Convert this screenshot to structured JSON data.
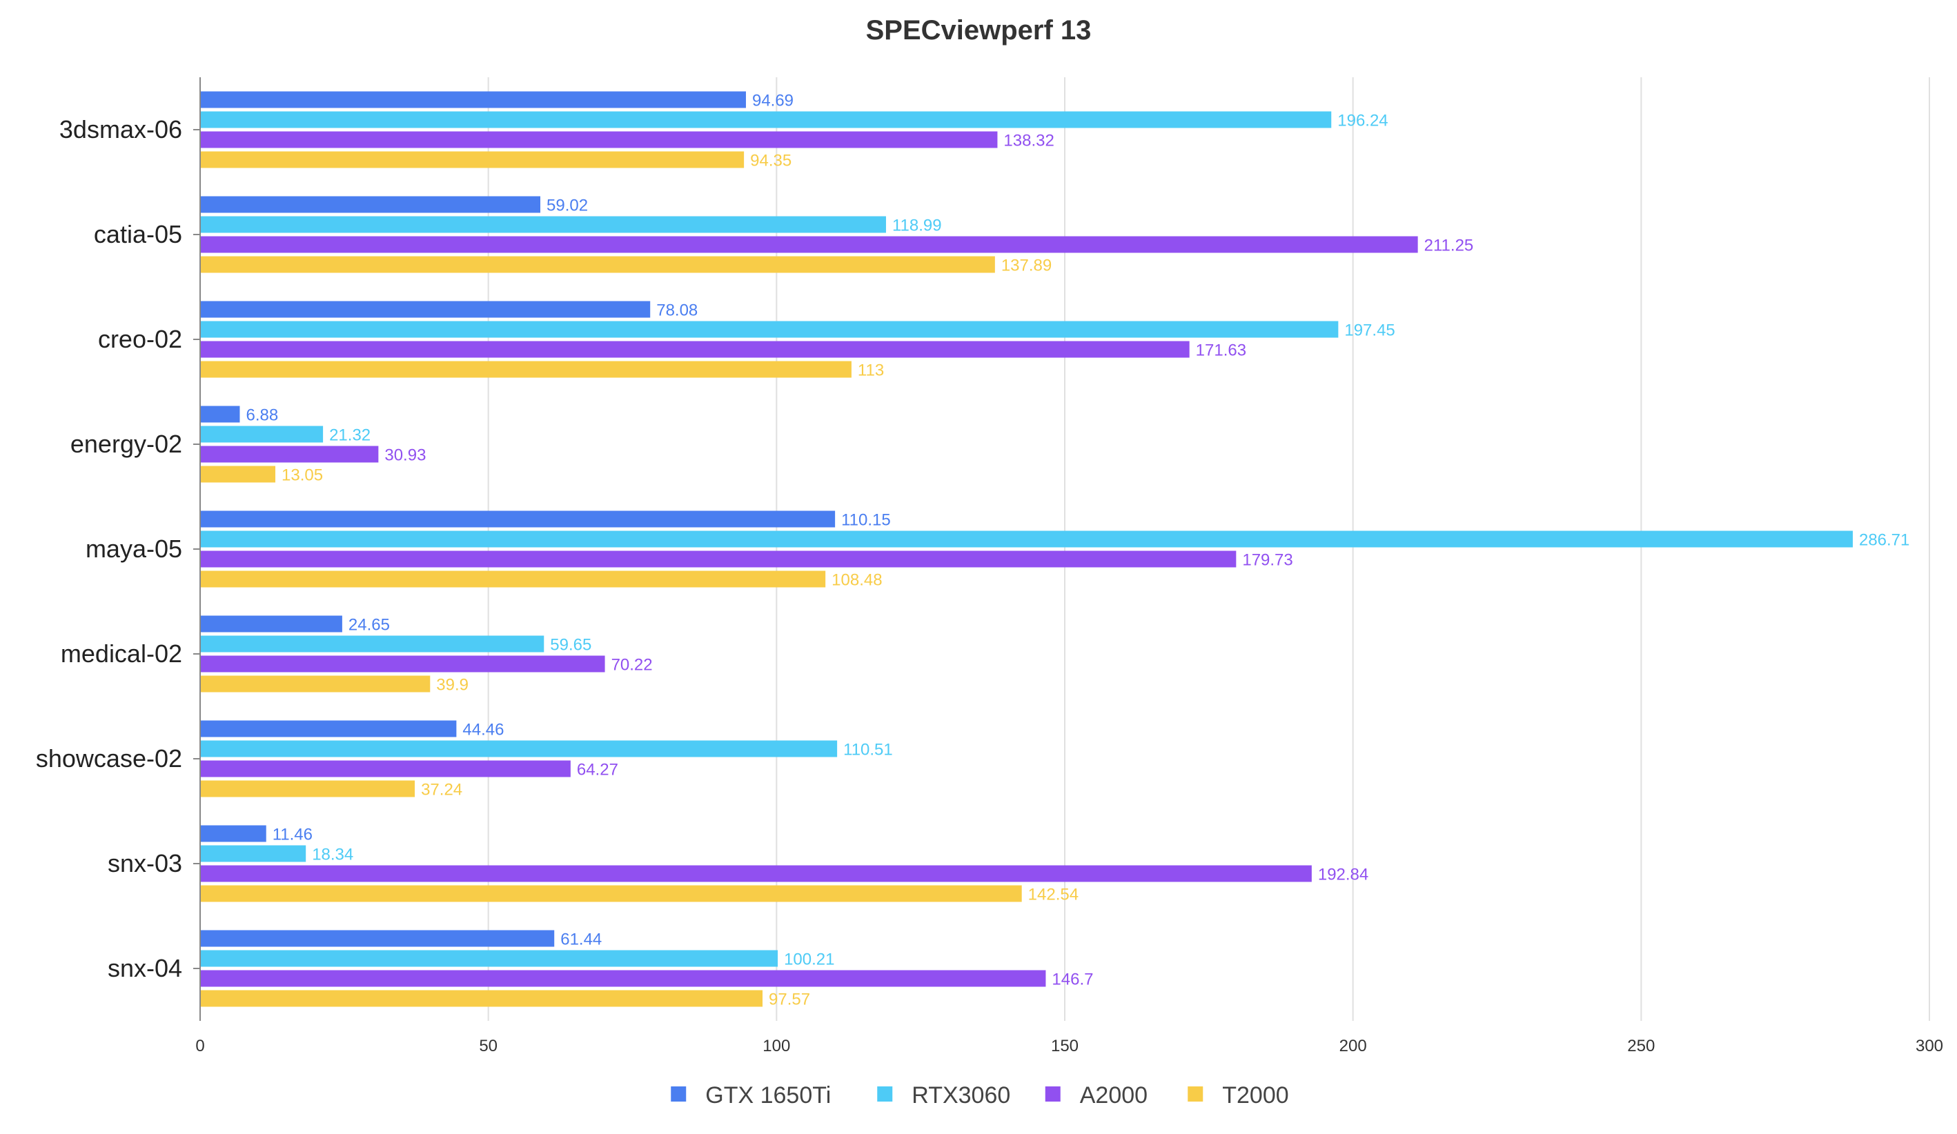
{
  "chart_data": {
    "type": "bar",
    "orientation": "horizontal",
    "title": "SPECviewperf 13",
    "xlabel": "",
    "ylabel": "",
    "xlim": [
      0,
      300
    ],
    "x_ticks": [
      0,
      50,
      100,
      150,
      200,
      250,
      300
    ],
    "grid": true,
    "legend_position": "bottom-center",
    "categories": [
      "3dsmax-06",
      "catia-05",
      "creo-02",
      "energy-02",
      "maya-05",
      "medical-02",
      "showcase-02",
      "snx-03",
      "snx-04"
    ],
    "series": [
      {
        "name": "GTX 1650Ti",
        "color": "#4a7ef0",
        "values": [
          94.69,
          59.02,
          78.08,
          6.88,
          110.15,
          24.65,
          44.46,
          11.46,
          61.44
        ],
        "labels": [
          "94.69",
          "59.02",
          "78.08",
          "6.88",
          "110.15",
          "24.65",
          "44.46",
          "11.46",
          "61.44"
        ]
      },
      {
        "name": "RTX3060",
        "color": "#4ecbf6",
        "values": [
          196.24,
          118.99,
          197.45,
          21.32,
          286.71,
          59.65,
          110.51,
          18.34,
          100.21
        ],
        "labels": [
          "196.24",
          "118.99",
          "197.45",
          "21.32",
          "286.71",
          "59.65",
          "110.51",
          "18.34",
          "100.21"
        ]
      },
      {
        "name": "A2000",
        "color": "#9150f0",
        "values": [
          138.32,
          211.25,
          171.63,
          30.93,
          179.73,
          70.22,
          64.27,
          192.84,
          146.7
        ],
        "labels": [
          "138.32",
          "211.25",
          "171.63",
          "30.93",
          "179.73",
          "70.22",
          "64.27",
          "192.84",
          "146.7"
        ]
      },
      {
        "name": "T2000",
        "color": "#f8cc48",
        "values": [
          94.35,
          137.89,
          113,
          13.05,
          108.48,
          39.9,
          37.24,
          142.54,
          97.57
        ],
        "labels": [
          "94.35",
          "137.89",
          "113",
          "13.05",
          "108.48",
          "39.9",
          "37.24",
          "142.54",
          "97.57"
        ]
      }
    ]
  }
}
